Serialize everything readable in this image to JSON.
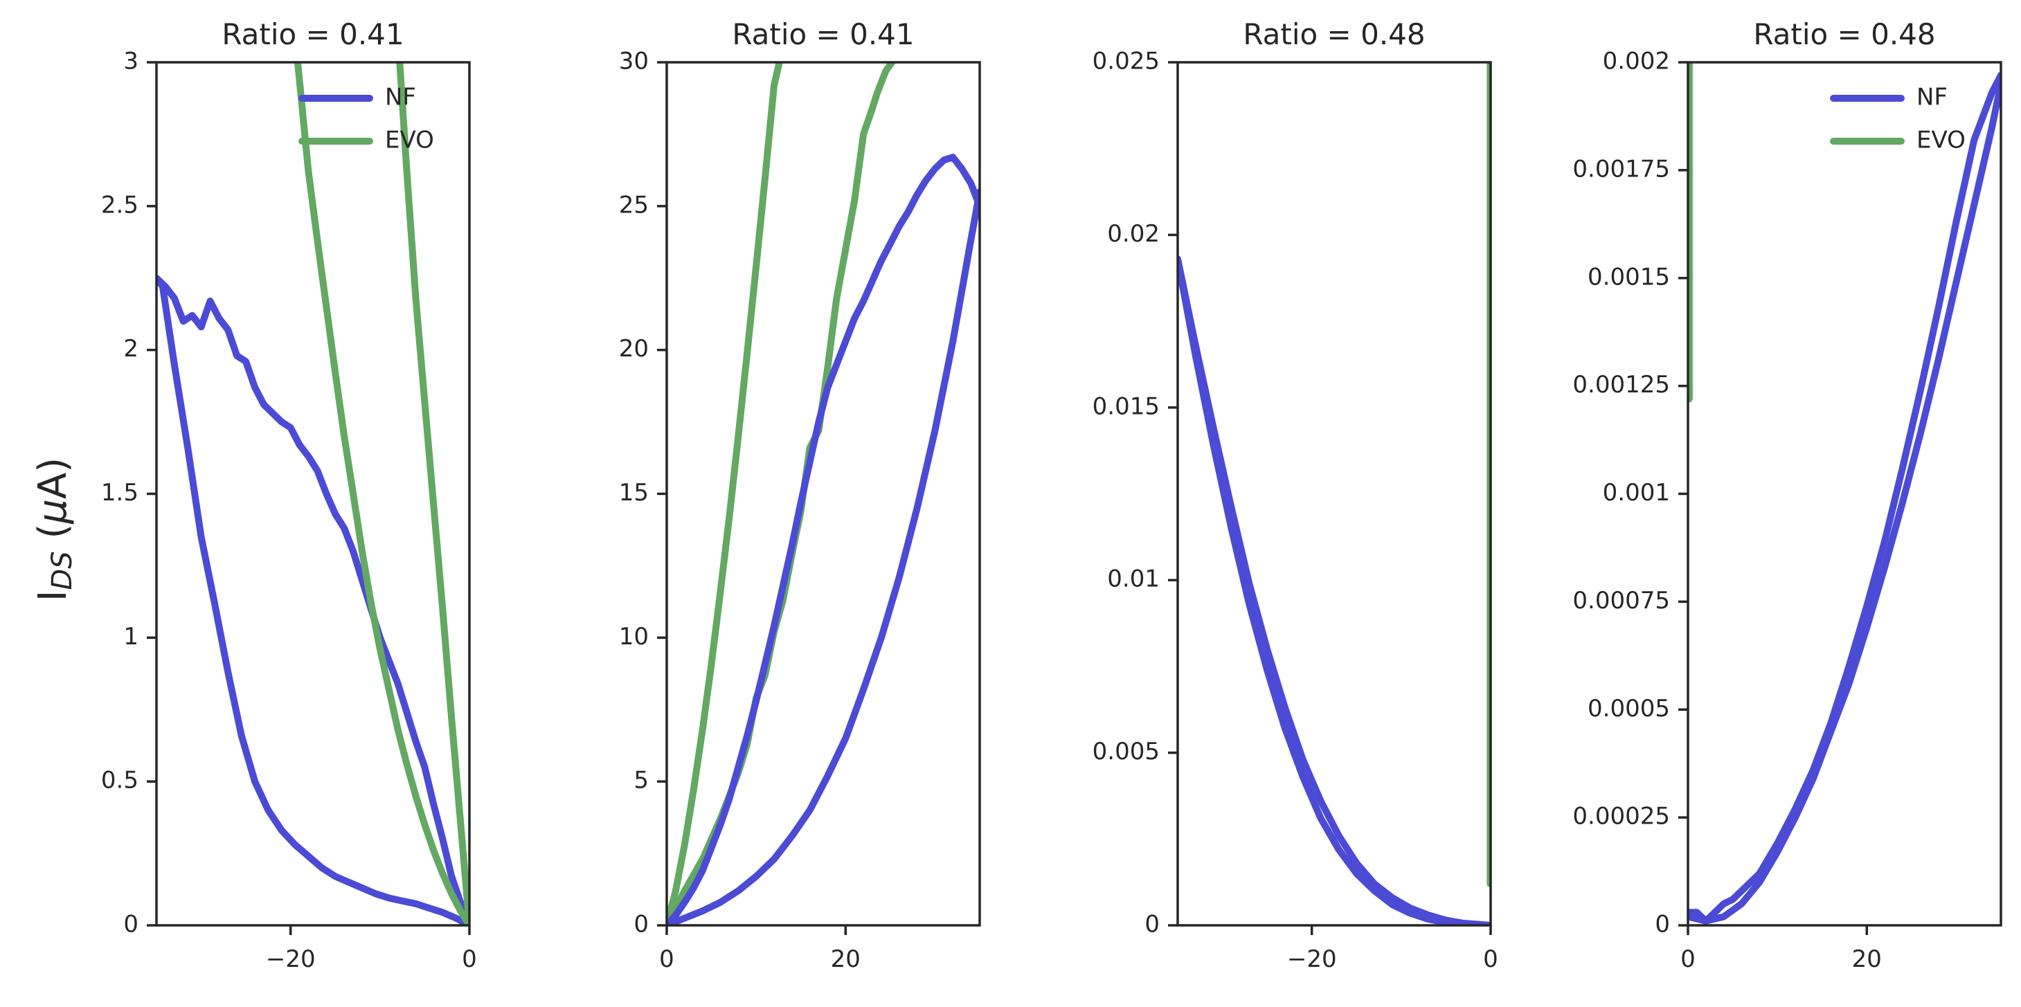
{
  "figure": {
    "ylabel": "I_DS (μA)"
  },
  "series_colors": {
    "NF": "#4b4bd6",
    "EVO": "#63a863"
  },
  "chart_data": [
    {
      "type": "line",
      "title": "Ratio = 0.41",
      "xlim": [
        -35,
        0
      ],
      "ylim": [
        0,
        3
      ],
      "xticks": [
        -20,
        0
      ],
      "xtick_labels": [
        "−20",
        "0"
      ],
      "yticks": [
        0,
        0.5,
        1,
        1.5,
        2,
        2.5,
        3
      ],
      "ytick_labels": [
        "0",
        "0.5",
        "1",
        "1.5",
        "2",
        "2.5",
        "3"
      ],
      "legend": {
        "placement": "top-right",
        "entries": [
          "NF",
          "EVO"
        ]
      },
      "series": [
        {
          "name": "NF",
          "x": [
            -35,
            -34.3,
            -33,
            -31.5,
            -30,
            -28.5,
            -27,
            -25.5,
            -24,
            -22.5,
            -21,
            -19.5,
            -18,
            -16.5,
            -15,
            -13.5,
            -12,
            -10.5,
            -9,
            -7.5,
            -6,
            -4.5,
            -3,
            -1.5,
            0
          ],
          "y": [
            2.25,
            2.22,
            1.95,
            1.66,
            1.35,
            1.12,
            0.88,
            0.66,
            0.5,
            0.4,
            0.33,
            0.28,
            0.24,
            0.2,
            0.17,
            0.15,
            0.13,
            0.11,
            0.095,
            0.085,
            0.075,
            0.06,
            0.045,
            0.025,
            0
          ]
        },
        {
          "name": "NF",
          "x": [
            -35,
            -34,
            -33,
            -32,
            -31,
            -30,
            -29,
            -28,
            -27,
            -26,
            -25,
            -24,
            -23,
            -22,
            -21,
            -20,
            -19,
            -18,
            -17,
            -16,
            -15,
            -14,
            -13,
            -12,
            -11,
            -10,
            -9,
            -8,
            -7,
            -6,
            -5,
            -4,
            -3,
            -2,
            -1,
            0
          ],
          "y": [
            2.25,
            2.22,
            2.18,
            2.1,
            2.12,
            2.08,
            2.17,
            2.11,
            2.07,
            1.98,
            1.96,
            1.87,
            1.81,
            1.78,
            1.75,
            1.73,
            1.67,
            1.63,
            1.58,
            1.5,
            1.43,
            1.38,
            1.3,
            1.2,
            1.1,
            1.0,
            0.92,
            0.84,
            0.74,
            0.64,
            0.55,
            0.42,
            0.3,
            0.17,
            0.08,
            0
          ]
        },
        {
          "name": "EVO",
          "x": [
            -19.2,
            -18,
            -17,
            -16,
            -15,
            -14,
            -13,
            -12,
            -11,
            -10,
            -9,
            -8,
            -7,
            -6,
            -5,
            -4,
            -3,
            -2,
            -1,
            0
          ],
          "y": [
            3.0,
            2.62,
            2.38,
            2.15,
            1.92,
            1.7,
            1.5,
            1.3,
            1.12,
            0.96,
            0.82,
            0.68,
            0.56,
            0.45,
            0.35,
            0.26,
            0.18,
            0.11,
            0.05,
            0
          ]
        },
        {
          "name": "EVO",
          "x": [
            -7.8,
            -7,
            -6,
            -5,
            -4,
            -3,
            -2,
            -1,
            0
          ],
          "y": [
            3.0,
            2.62,
            2.18,
            1.82,
            1.46,
            1.1,
            0.72,
            0.36,
            0
          ]
        }
      ]
    },
    {
      "type": "line",
      "title": "Ratio = 0.41",
      "xlim": [
        0,
        35
      ],
      "ylim": [
        0,
        30
      ],
      "xticks": [
        0,
        20
      ],
      "xtick_labels": [
        "0",
        "20"
      ],
      "yticks": [
        0,
        5,
        10,
        15,
        20,
        25,
        30
      ],
      "ytick_labels": [
        "0",
        "5",
        "10",
        "15",
        "20",
        "25",
        "30"
      ],
      "series": [
        {
          "name": "EVO",
          "x": [
            0,
            1,
            2,
            3,
            4,
            5,
            6,
            7,
            8,
            9,
            10,
            11,
            12,
            12.6
          ],
          "y": [
            0,
            1.2,
            2.8,
            4.7,
            6.8,
            9.1,
            11.6,
            14.2,
            17.0,
            19.9,
            22.9,
            26.0,
            29.2,
            30
          ]
        },
        {
          "name": "EVO",
          "x": [
            0,
            2,
            4,
            6,
            8,
            9,
            10,
            11,
            12,
            13,
            14,
            15,
            16,
            17,
            18,
            19,
            20,
            21,
            22,
            23,
            23.5,
            24,
            24.5,
            25.2
          ],
          "y": [
            0,
            1.2,
            2.3,
            3.7,
            5.3,
            6.3,
            7.9,
            8.7,
            10.2,
            11.3,
            12.9,
            14.4,
            16.6,
            17.2,
            19.4,
            21.8,
            23.5,
            25.2,
            27.5,
            28.4,
            28.9,
            29.3,
            29.7,
            30
          ]
        },
        {
          "name": "NF",
          "x": [
            0,
            1,
            2,
            3,
            4,
            5,
            6,
            7,
            8,
            9,
            10,
            11,
            12,
            13,
            14,
            15,
            16,
            17,
            18,
            19,
            20,
            21,
            22,
            23,
            24,
            25,
            26,
            27,
            28,
            29,
            30,
            31,
            32,
            33,
            34,
            35
          ],
          "y": [
            0,
            0.35,
            0.8,
            1.3,
            1.9,
            2.7,
            3.5,
            4.4,
            5.5,
            6.6,
            7.8,
            9.1,
            10.4,
            11.8,
            13.2,
            14.7,
            16.1,
            17.5,
            18.7,
            19.5,
            20.3,
            21.1,
            21.7,
            22.4,
            23.1,
            23.7,
            24.3,
            24.8,
            25.4,
            25.9,
            26.3,
            26.6,
            26.7,
            26.3,
            25.8,
            25.0
          ]
        },
        {
          "name": "NF",
          "x": [
            0,
            2,
            4,
            6,
            8,
            10,
            12,
            14,
            16,
            18,
            20,
            22,
            24,
            26,
            28,
            30,
            32,
            34,
            35
          ],
          "y": [
            0,
            0.25,
            0.5,
            0.8,
            1.2,
            1.7,
            2.3,
            3.1,
            4.0,
            5.2,
            6.5,
            8.2,
            10.0,
            12.1,
            14.5,
            17.2,
            20.3,
            23.8,
            25.5
          ]
        }
      ]
    },
    {
      "type": "line",
      "title": "Ratio = 0.48",
      "xlim": [
        -35,
        0
      ],
      "ylim": [
        0,
        0.025
      ],
      "xticks": [
        -20,
        0
      ],
      "xtick_labels": [
        "−20",
        "0"
      ],
      "yticks": [
        0,
        0.005,
        0.01,
        0.015,
        0.02,
        0.025
      ],
      "ytick_labels": [
        "0",
        "0.005",
        "0.01",
        "0.015",
        "0.02",
        "0.025"
      ],
      "series": [
        {
          "name": "NF",
          "x": [
            -35,
            -33,
            -31,
            -29,
            -27,
            -25,
            -23,
            -21,
            -19,
            -17,
            -15,
            -13,
            -11,
            -9,
            -7,
            -5,
            -3,
            -1,
            0
          ],
          "y": [
            0.0193,
            0.0165,
            0.0139,
            0.0115,
            0.0093,
            0.0074,
            0.0057,
            0.0043,
            0.0031,
            0.0022,
            0.0015,
            0.001,
            0.0006,
            0.00035,
            0.00018,
            8e-05,
            3e-05,
            1e-05,
            0
          ]
        },
        {
          "name": "NF",
          "x": [
            -35,
            -33,
            -31,
            -29,
            -27,
            -25,
            -23,
            -21,
            -19,
            -17,
            -15,
            -13,
            -11,
            -9,
            -7,
            -5,
            -3,
            -1,
            0
          ],
          "y": [
            0.0193,
            0.0168,
            0.0144,
            0.0121,
            0.0099,
            0.008,
            0.0063,
            0.0048,
            0.0036,
            0.0026,
            0.0018,
            0.0012,
            0.0008,
            0.0005,
            0.0003,
            0.00015,
            6e-05,
            2e-05,
            0
          ]
        },
        {
          "name": "EVO",
          "x": [
            -0.05,
            -0.05
          ],
          "y": [
            0.0012,
            0.025
          ]
        }
      ]
    },
    {
      "type": "line",
      "title": "Ratio = 0.48",
      "xlim": [
        0,
        35
      ],
      "ylim": [
        0,
        0.002
      ],
      "xticks": [
        0,
        20
      ],
      "xtick_labels": [
        "0",
        "20"
      ],
      "yticks": [
        0,
        0.00025,
        0.0005,
        0.00075,
        0.001,
        0.00125,
        0.0015,
        0.00175,
        0.002
      ],
      "ytick_labels": [
        "0",
        "0.00025",
        "0.0005",
        "0.00075",
        "0.001",
        "0.00125",
        "0.0015",
        "0.00175",
        "0.002"
      ],
      "legend": {
        "placement": "top-right",
        "entries": [
          "NF",
          "EVO"
        ]
      },
      "series": [
        {
          "name": "NF",
          "x": [
            0,
            1,
            2,
            3,
            4,
            5,
            6,
            8,
            10,
            12,
            14,
            16,
            18,
            20,
            22,
            24,
            26,
            28,
            30,
            32,
            34,
            35
          ],
          "y": [
            3e-05,
            3e-05,
            1e-05,
            3e-05,
            5e-05,
            6e-05,
            8e-05,
            0.00012,
            0.00019,
            0.00027,
            0.00036,
            0.00047,
            0.0006,
            0.00074,
            0.00089,
            0.00106,
            0.00124,
            0.00143,
            0.00163,
            0.00182,
            0.00193,
            0.00197
          ]
        },
        {
          "name": "NF",
          "x": [
            0,
            2,
            4,
            6,
            8,
            10,
            12,
            14,
            16,
            18,
            20,
            22,
            24,
            26,
            28,
            30,
            32,
            34,
            35
          ],
          "y": [
            2e-05,
            1e-05,
            2e-05,
            5e-05,
            0.0001,
            0.00017,
            0.00025,
            0.00034,
            0.00045,
            0.00056,
            0.00069,
            0.00083,
            0.00098,
            0.00114,
            0.00131,
            0.00149,
            0.00167,
            0.00185,
            0.00195
          ]
        },
        {
          "name": "EVO",
          "x": [
            0.15,
            0.15
          ],
          "y": [
            0.00122,
            0.002
          ]
        }
      ]
    }
  ]
}
